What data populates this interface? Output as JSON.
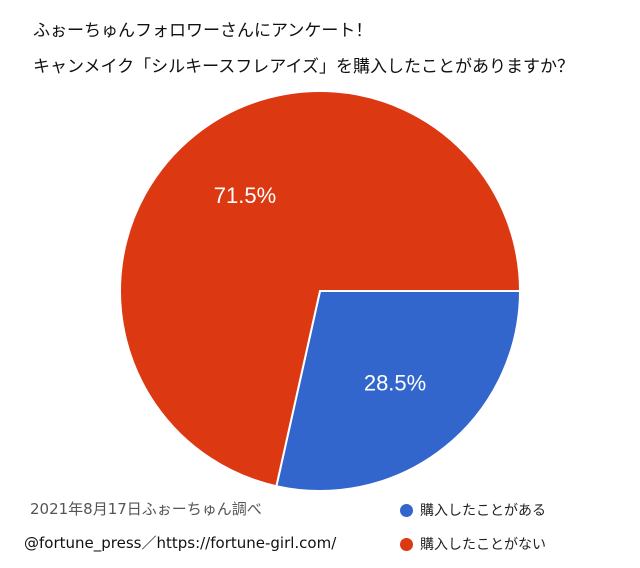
{
  "chart_data": {
    "type": "pie",
    "title_lines": [
      "ふぉーちゅんフォロワーさんにアンケート！",
      "キャンメイク「シルキースフレアイズ」を購入したことがありますか？"
    ],
    "slices": [
      {
        "label": "購入したことがある",
        "value": 28.5,
        "display": "28.5%",
        "color": "#3366cc"
      },
      {
        "label": "購入したことがない",
        "value": 71.5,
        "display": "71.5%",
        "color": "#dc3912"
      }
    ],
    "legend_position": "bottom-right"
  },
  "footer": {
    "date_note": "2021年8月17日ふぉーちゅん調べ",
    "source": "@fortune_press／https://fortune-girl.com/"
  }
}
